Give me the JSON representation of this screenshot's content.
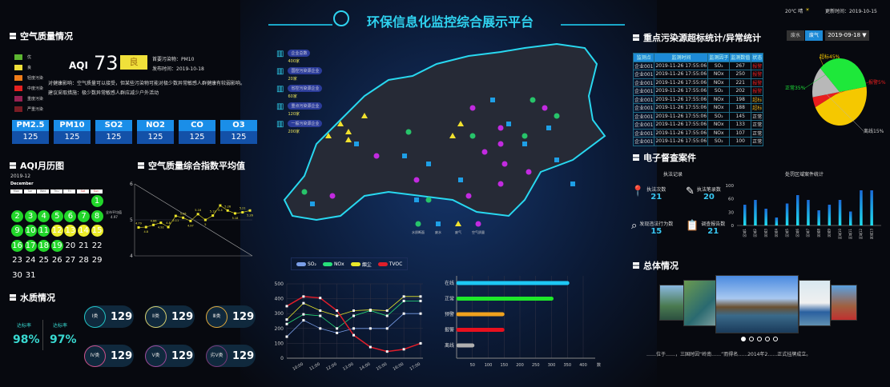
{
  "header": {
    "title": "环保信息化监控综合展示平台",
    "weather": "20℃ 晴",
    "update_time": "更新时间：2019-10-15",
    "colors": {
      "title": "#2fd3f0"
    }
  },
  "air": {
    "title": "空气质量情况",
    "legend": [
      {
        "label": "优",
        "color": "#5cb531"
      },
      {
        "label": "良",
        "color": "#f0e03a"
      },
      {
        "label": "轻度污染",
        "color": "#f07d1a"
      },
      {
        "label": "中度污染",
        "color": "#e42121"
      },
      {
        "label": "重度污染",
        "color": "#982252"
      },
      {
        "label": "严重污染",
        "color": "#7a1c24"
      }
    ],
    "aqi_label": "AQI",
    "aqi": "73",
    "level": "良",
    "primary": "首要污染物：PM10",
    "published": "发布时间：2019-10-18",
    "health": "对健康影响：空气质量可以接受，但某些污染物可能对极少数异常敏感人群健康有较弱影响。",
    "advice": "建议采取措施：极少数异常敏感人群应减少户外活动",
    "pollutants": [
      {
        "name": "PM2.5",
        "value": "125"
      },
      {
        "name": "PM10",
        "value": "125"
      },
      {
        "name": "SO2",
        "value": "125"
      },
      {
        "name": "NO2",
        "value": "125"
      },
      {
        "name": "CO",
        "value": "125"
      },
      {
        "name": "O3",
        "value": "125"
      }
    ]
  },
  "calendar": {
    "title": "AQI月历图",
    "year_month": "2019-12",
    "month_name": "December",
    "weekdays": [
      "Mon",
      "Tue",
      "Wed",
      "Thu",
      "Fri",
      "Sat",
      "Sun"
    ],
    "first_weekday": 6,
    "days": 31,
    "green_days": [
      1,
      2,
      3,
      4,
      5,
      6,
      7,
      8,
      9,
      10,
      11,
      16,
      17,
      18,
      19
    ],
    "yellow_days": [
      12,
      13,
      14,
      15
    ]
  },
  "water": {
    "title": "水质情况",
    "rate1_label": "达标率",
    "rate1": "98%",
    "rate2_label": "达标率",
    "rate2": "97%",
    "classes": [
      {
        "label": "Ⅰ类",
        "value": "129",
        "color": "#23c7c7"
      },
      {
        "label": "Ⅱ类",
        "value": "129",
        "color": "#d8d070"
      },
      {
        "label": "Ⅲ类",
        "value": "129",
        "color": "#e0a83a"
      },
      {
        "label": "Ⅳ类",
        "value": "129",
        "color": "#d0508a"
      },
      {
        "label": "Ⅴ类",
        "value": "129",
        "color": "#a04a9a"
      },
      {
        "label": "劣Ⅴ类",
        "value": "129",
        "color": "#7a3a7a"
      }
    ]
  },
  "map": {
    "enterprises": [
      {
        "label": "企业总数",
        "count": "400家"
      },
      {
        "label": "国控污染源企业",
        "count": "20家"
      },
      {
        "label": "省控污染源企业",
        "count": "60家"
      },
      {
        "label": "重点污染源企业",
        "count": "120家"
      },
      {
        "label": "一般污染源企业",
        "count": "200家"
      }
    ],
    "legend": [
      {
        "label": "水质断面",
        "color": "#27c46a",
        "shape": "circle"
      },
      {
        "label": "废水",
        "color": "#1e9fe6",
        "shape": "square"
      },
      {
        "label": "废气",
        "color": "#f2e22e",
        "shape": "triangle"
      },
      {
        "label": "空气质量",
        "color": "#c22ae0",
        "shape": "circle"
      }
    ]
  },
  "chart_data": [
    {
      "type": "line",
      "title": "空气质量综合指数平均值",
      "ylim": [
        4,
        6
      ],
      "yticks": [
        "4",
        "5",
        "6"
      ],
      "avg_label": "全市平均值",
      "avg_value": "4.97",
      "values": [
        4.79,
        4.8,
        4.86,
        4.92,
        4.8,
        5.11,
        5.06,
        4.97,
        5.16,
        5.0,
        5.12,
        5.4,
        5.26,
        5.18,
        5.21,
        5.26
      ]
    },
    {
      "type": "line",
      "categories": [
        "",
        "10:00",
        "11:00",
        "12:00",
        "13:00",
        "14:00",
        "15:00",
        "16:00",
        "17:00"
      ],
      "ylim": [
        0,
        500
      ],
      "yticks": [
        "0",
        "100",
        "200",
        "300",
        "400",
        "500"
      ],
      "series": [
        {
          "name": "SO₂",
          "color": "#7a9ee8",
          "values": [
            145,
            255,
            200,
            170,
            200,
            200,
            200,
            300,
            300
          ]
        },
        {
          "name": "NOx",
          "color": "#27e07a",
          "values": [
            230,
            295,
            285,
            200,
            285,
            320,
            285,
            385,
            385
          ]
        },
        {
          "name": "烟尘",
          "color": "#e8e82a",
          "values": [
            260,
            370,
            320,
            285,
            320,
            325,
            320,
            415,
            415
          ]
        },
        {
          "name": "TVOC",
          "color": "#e01e2a",
          "values": [
            350,
            415,
            405,
            320,
            155,
            75,
            45,
            60,
            100
          ]
        }
      ]
    },
    {
      "type": "bar",
      "orientation": "horizontal",
      "categories": [
        "在线",
        "正常",
        "预警",
        "报警",
        "离线"
      ],
      "values": [
        350,
        300,
        145,
        145,
        50
      ],
      "colors": [
        "#1ec8f5",
        "#1ee82a",
        "#f0a21e",
        "#e8101e",
        "#b0b0b0"
      ],
      "xlim": [
        0,
        400
      ],
      "xticks": [
        "50",
        "100",
        "150",
        "200",
        "250",
        "300",
        "350",
        "400"
      ],
      "xunit": "数"
    },
    {
      "type": "pie",
      "title": "",
      "slices": [
        {
          "label": "超标45%",
          "value": 45,
          "color": "#f5c800"
        },
        {
          "label": "报警5%",
          "value": 5,
          "color": "#e81e1e"
        },
        {
          "label": "离线15%",
          "value": 15,
          "color": "#b8b8b8"
        },
        {
          "label": "正常35%",
          "value": 35,
          "color": "#1ee83a"
        }
      ]
    },
    {
      "type": "bar",
      "title": "处罚区域案件统计",
      "categories": [
        "区域1",
        "区域2",
        "区域3",
        "区域4",
        "区域5",
        "区域6",
        "区域7",
        "区域8",
        "区域9",
        "区域10",
        "区域11",
        "区域12",
        "区域13"
      ],
      "values": [
        52,
        64,
        42,
        20,
        55,
        76,
        64,
        38,
        52,
        64,
        35,
        88,
        88
      ],
      "yticks": [
        "0",
        "30",
        "60",
        "100"
      ],
      "ylim": [
        0,
        100
      ]
    }
  ],
  "pollution": {
    "title": "重点污染源超标统计/异常统计",
    "tabs": [
      "废水",
      "废气"
    ],
    "active_tab": 1,
    "date": "2019-09-18 ▼",
    "columns": [
      "监测点",
      "监测时间",
      "监测因子",
      "监测数值",
      "状态"
    ],
    "rows": [
      [
        "企业001",
        "2019-11-26  17:55:06",
        "SO₂",
        "267",
        "报警"
      ],
      [
        "企业001",
        "2019-11-26  17:55:06",
        "NOx",
        "250",
        "报警"
      ],
      [
        "企业001",
        "2019-11-26  17:55:06",
        "NOx",
        "221",
        "报警"
      ],
      [
        "企业001",
        "2019-11-26  17:55:06",
        "SO₂",
        "202",
        "报警"
      ],
      [
        "企业001",
        "2019-11-26  17:55:06",
        "NOx",
        "198",
        "超标"
      ],
      [
        "企业001",
        "2019-11-26  17:55:06",
        "NOx",
        "188",
        "超标"
      ],
      [
        "企业001",
        "2019-11-26  17:55:06",
        "SO₂",
        "145",
        "正常"
      ],
      [
        "企业001",
        "2019-11-26  17:55:06",
        "NOx",
        "133",
        "正常"
      ],
      [
        "企业001",
        "2019-11-26  17:55:06",
        "NOx",
        "107",
        "正常"
      ],
      [
        "企业001",
        "2019-11-26  17:55:06",
        "SO₂",
        "100",
        "正常"
      ]
    ],
    "status_colors": {
      "报警": "#e81e1e",
      "超标": "#e8b01e",
      "正常": "#dddddd"
    }
  },
  "inspection": {
    "title": "电子督查案件",
    "record_title": "执法记录",
    "stats": [
      {
        "label": "执法次数",
        "value": "21"
      },
      {
        "label": "执法笔录数",
        "value": "20"
      },
      {
        "label": "发现违法行为数",
        "value": "15"
      },
      {
        "label": "调查报告数",
        "value": "21"
      }
    ]
  },
  "overview": {
    "title": "总体情况",
    "text": "……位于……，三国时因“岭南……”而得名……2014年2……正式挂牌成立。",
    "slides": 5,
    "active_slide": 0
  }
}
